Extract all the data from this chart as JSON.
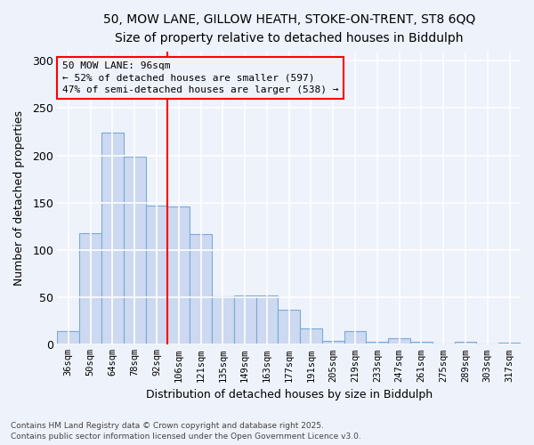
{
  "title_line1": "50, MOW LANE, GILLOW HEATH, STOKE-ON-TRENT, ST8 6QQ",
  "title_line2": "Size of property relative to detached houses in Biddulph",
  "xlabel": "Distribution of detached houses by size in Biddulph",
  "ylabel": "Number of detached properties",
  "categories": [
    "36sqm",
    "50sqm",
    "64sqm",
    "78sqm",
    "92sqm",
    "106sqm",
    "121sqm",
    "135sqm",
    "149sqm",
    "163sqm",
    "177sqm",
    "191sqm",
    "205sqm",
    "219sqm",
    "233sqm",
    "247sqm",
    "261sqm",
    "275sqm",
    "289sqm",
    "303sqm",
    "317sqm"
  ],
  "values": [
    14,
    118,
    224,
    199,
    147,
    146,
    117,
    51,
    52,
    52,
    37,
    17,
    4,
    14,
    3,
    7,
    3,
    1,
    3,
    1,
    2
  ],
  "bar_color": "#ccd9f0",
  "bar_edge_color": "#7aaad8",
  "background_color": "#eef2fb",
  "grid_color": "#ffffff",
  "ylim": [
    0,
    310
  ],
  "yticks": [
    0,
    50,
    100,
    150,
    200,
    250,
    300
  ],
  "property_label": "50 MOW LANE: 96sqm",
  "annotation_line1": "← 52% of detached houses are smaller (597)",
  "annotation_line2": "47% of semi-detached houses are larger (538) →",
  "vline_x_index": 4.5,
  "footer_line1": "Contains HM Land Registry data © Crown copyright and database right 2025.",
  "footer_line2": "Contains public sector information licensed under the Open Government Licence v3.0."
}
